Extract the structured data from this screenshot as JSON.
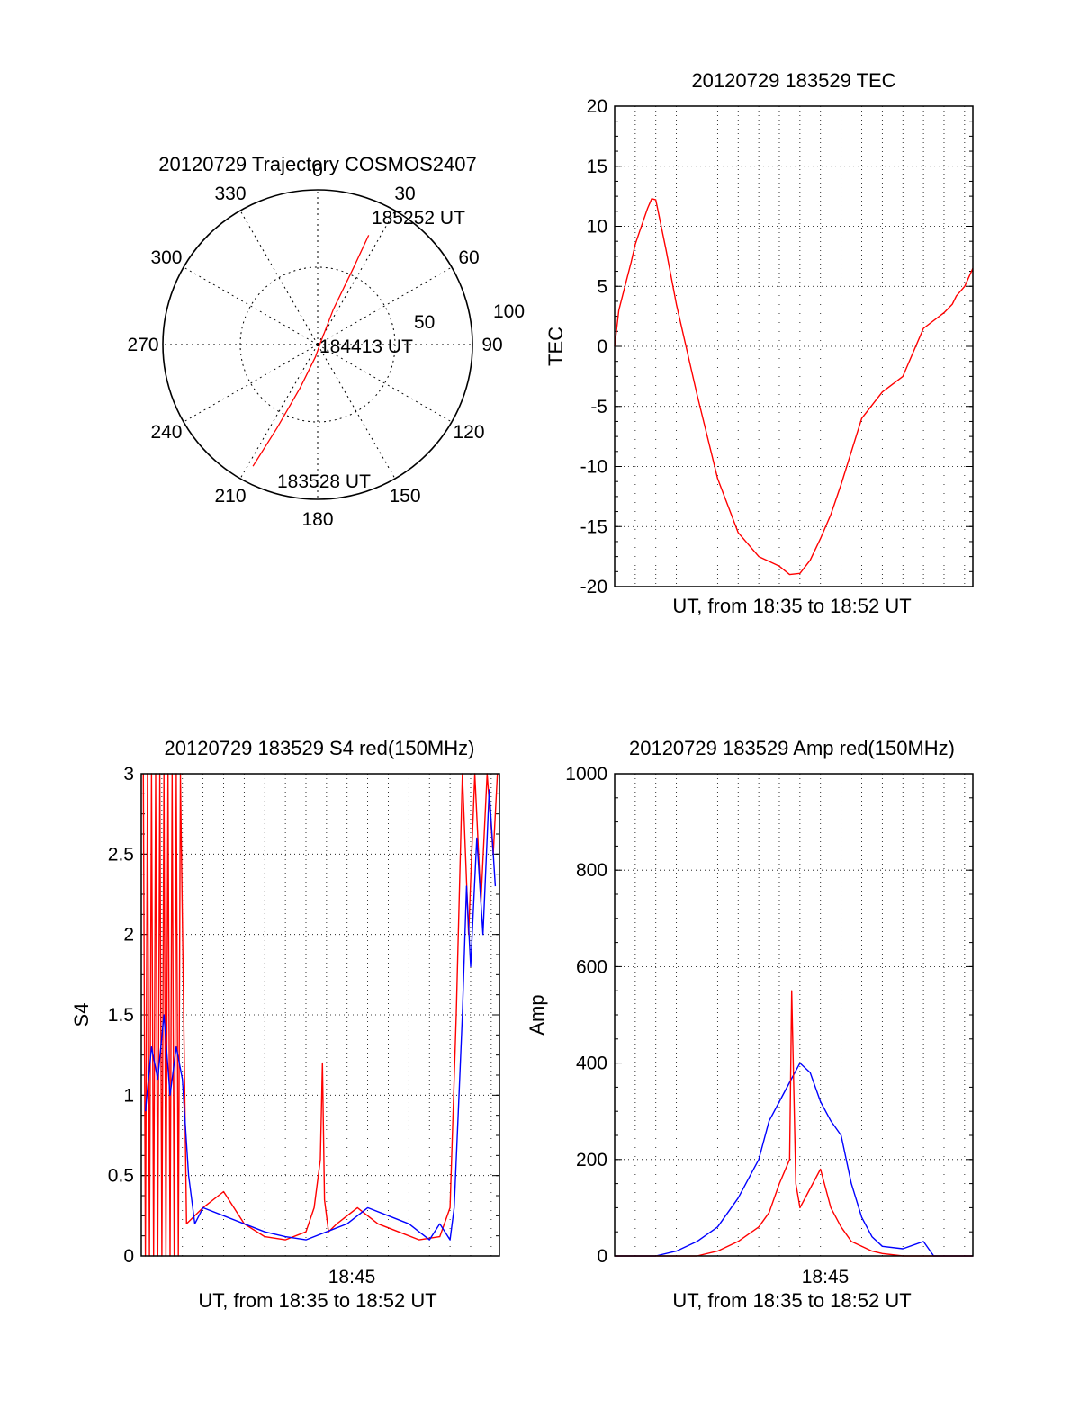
{
  "chart_data": [
    {
      "type": "polar",
      "title": "20120729 Trajectory COSMOS2407",
      "angle_labels": [
        "0",
        "30",
        "60",
        "90",
        "120",
        "150",
        "180",
        "210",
        "240",
        "270",
        "300",
        "330"
      ],
      "radial_labels": [
        "50",
        "100"
      ],
      "rlim": [
        0,
        100
      ],
      "grid": true,
      "annotations": [
        "185252 UT",
        "184413 UT",
        "183528 UT"
      ],
      "series": [
        {
          "color": "#ff0000",
          "points": [
            {
              "azimuth": 208,
              "zenith": 89
            },
            {
              "azimuth": 206,
              "zenith": 60
            },
            {
              "azimuth": 202,
              "zenith": 30
            },
            {
              "azimuth": 190,
              "zenith": 8
            },
            {
              "azimuth": 60,
              "zenith": 2
            },
            {
              "azimuth": 24,
              "zenith": 25
            },
            {
              "azimuth": 25,
              "zenith": 55
            },
            {
              "azimuth": 25,
              "zenith": 78
            }
          ]
        }
      ]
    },
    {
      "type": "line",
      "title": "20120729 183529 TEC",
      "xlabel": "UT, from 18:35 to 18:52 UT",
      "ylabel": "TEC",
      "xlim": [
        0,
        17.4
      ],
      "ylim": [
        -20,
        20
      ],
      "yticks": [
        "20",
        "15",
        "10",
        "5",
        "0",
        "-5",
        "-10",
        "-15",
        "-20"
      ],
      "grid": true,
      "series": [
        {
          "color": "#ff0000",
          "x": [
            0,
            0.2,
            0.5,
            0.8,
            1.0,
            1.2,
            1.4,
            1.6,
            1.8,
            2.0,
            2.5,
            3.0,
            4.0,
            5.0,
            6.0,
            7.0,
            8.0,
            8.5,
            9.0,
            9.5,
            10.0,
            10.5,
            11.0,
            12.0,
            13.0,
            14.0,
            15.0,
            16.0,
            16.4,
            16.6,
            17.0,
            17.4
          ],
          "y": [
            0,
            3,
            5,
            7,
            8.5,
            9.5,
            10.5,
            11.5,
            12.3,
            12.2,
            8,
            3.5,
            -4,
            -11,
            -15.5,
            -17.5,
            -18.3,
            -19,
            -18.9,
            -17.8,
            -16,
            -14,
            -11.5,
            -6,
            -3.8,
            -2.5,
            1.5,
            2.8,
            3.5,
            4.2,
            5,
            6.5
          ]
        }
      ]
    },
    {
      "type": "line",
      "title": "20120729 183529 S4 red(150MHz)",
      "xlabel": "UT, from 18:35 to 18:52 UT",
      "ylabel": "S4",
      "xtick_labels": [
        "18:45"
      ],
      "xlim": [
        0,
        17.4
      ],
      "ylim": [
        0,
        3
      ],
      "yticks": [
        "3",
        "2.5",
        "2",
        "1.5",
        "1",
        "0.5",
        "0"
      ],
      "grid": true,
      "series": [
        {
          "color": "#ff0000",
          "x": [
            0.1,
            0.2,
            0.3,
            0.4,
            0.5,
            0.6,
            0.7,
            0.8,
            0.9,
            1.0,
            1.1,
            1.2,
            1.3,
            1.4,
            1.5,
            1.6,
            1.7,
            1.8,
            1.9,
            2.2,
            3.0,
            4.0,
            5.0,
            6.0,
            7.0,
            8.0,
            8.4,
            8.7,
            8.8,
            8.9,
            9.1,
            9.5,
            10.5,
            11.5,
            12.5,
            13.5,
            14.5,
            15.0,
            15.3,
            15.6,
            15.9,
            16.2,
            16.5,
            16.8,
            17.1,
            17.3
          ],
          "y": [
            3.0,
            0.0,
            3.0,
            0.0,
            3.0,
            0.0,
            3.0,
            0.0,
            3.0,
            0.0,
            3.0,
            0.0,
            3.0,
            0.0,
            3.0,
            0.0,
            3.0,
            0.0,
            3.0,
            0.2,
            0.3,
            0.4,
            0.2,
            0.12,
            0.1,
            0.15,
            0.3,
            0.6,
            1.2,
            0.35,
            0.15,
            0.2,
            0.3,
            0.2,
            0.15,
            0.1,
            0.12,
            0.3,
            1.5,
            3.0,
            2.0,
            3.0,
            2.2,
            3.0,
            2.5,
            3.0
          ]
        },
        {
          "color": "#0000ff",
          "x": [
            0.2,
            0.5,
            0.8,
            1.1,
            1.4,
            1.7,
            2.0,
            2.3,
            2.6,
            3.0,
            4.0,
            5.0,
            6.0,
            7.0,
            8.0,
            9.0,
            10.0,
            11.0,
            12.0,
            13.0,
            14.0,
            14.5,
            15.0,
            15.2,
            15.4,
            15.6,
            15.8,
            16.0,
            16.3,
            16.6,
            16.9,
            17.2
          ],
          "y": [
            0.9,
            1.3,
            1.1,
            1.5,
            1.0,
            1.3,
            1.1,
            0.5,
            0.2,
            0.3,
            0.25,
            0.2,
            0.15,
            0.12,
            0.1,
            0.15,
            0.2,
            0.3,
            0.25,
            0.2,
            0.1,
            0.2,
            0.1,
            0.3,
            0.9,
            1.5,
            2.3,
            1.8,
            2.6,
            2.0,
            2.9,
            2.3
          ]
        }
      ]
    },
    {
      "type": "line",
      "title": "20120729 183529 Amp red(150MHz)",
      "xlabel": "UT, from 18:35 to 18:52 UT",
      "ylabel": "Amp",
      "xtick_labels": [
        "18:45"
      ],
      "xlim": [
        0,
        17.4
      ],
      "ylim": [
        0,
        1000
      ],
      "yticks": [
        "1000",
        "800",
        "600",
        "400",
        "200",
        "0"
      ],
      "grid": true,
      "series": [
        {
          "color": "#0000ff",
          "x": [
            0,
            1.0,
            2.0,
            3.0,
            4.0,
            5.0,
            6.0,
            7.0,
            7.5,
            8.0,
            8.5,
            9.0,
            9.5,
            10.0,
            10.5,
            11.0,
            11.5,
            12.0,
            12.5,
            13.0,
            14.0,
            15.0,
            15.5,
            16.0,
            17.0,
            17.4
          ],
          "y": [
            0,
            0,
            0,
            10,
            30,
            60,
            120,
            200,
            280,
            320,
            360,
            400,
            380,
            320,
            280,
            250,
            150,
            80,
            40,
            20,
            15,
            30,
            0,
            0,
            0,
            0
          ]
        },
        {
          "color": "#ff0000",
          "x": [
            0,
            2.0,
            4.0,
            5.0,
            6.0,
            7.0,
            7.5,
            8.0,
            8.5,
            8.6,
            8.8,
            9.0,
            9.5,
            10.0,
            10.5,
            11.0,
            11.5,
            12.0,
            12.5,
            13.0,
            14.0,
            15.0,
            17.4
          ],
          "y": [
            0,
            0,
            0,
            10,
            30,
            60,
            90,
            150,
            200,
            550,
            150,
            100,
            140,
            180,
            100,
            60,
            30,
            20,
            10,
            5,
            0,
            0,
            0
          ]
        }
      ]
    }
  ]
}
